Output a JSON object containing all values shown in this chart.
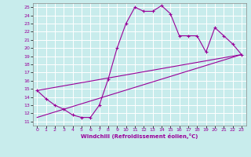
{
  "xlabel": "Windchill (Refroidissement éolien,°C)",
  "xlim": [
    -0.5,
    23.5
  ],
  "ylim": [
    10.5,
    25.5
  ],
  "yticks": [
    11,
    12,
    13,
    14,
    15,
    16,
    17,
    18,
    19,
    20,
    21,
    22,
    23,
    24,
    25
  ],
  "xticks": [
    0,
    1,
    2,
    3,
    4,
    5,
    6,
    7,
    8,
    9,
    10,
    11,
    12,
    13,
    14,
    15,
    16,
    17,
    18,
    19,
    20,
    21,
    22,
    23
  ],
  "line_color": "#990099",
  "bg_color": "#c8ecec",
  "grid_color": "#ffffff",
  "curve_x": [
    0,
    1,
    2,
    3,
    4,
    5,
    6,
    7,
    8,
    9,
    10,
    11,
    12,
    13,
    14,
    15,
    16,
    17,
    18,
    19,
    20,
    21,
    22,
    23
  ],
  "curve_y": [
    14.8,
    13.8,
    13.0,
    12.5,
    11.8,
    11.5,
    11.5,
    13.0,
    16.2,
    20.0,
    23.0,
    25.0,
    24.5,
    24.5,
    25.2,
    24.2,
    21.5,
    21.5,
    21.5,
    19.5,
    22.5,
    21.5,
    20.5,
    19.2
  ],
  "line1_x": [
    0,
    23
  ],
  "line1_y": [
    14.8,
    19.2
  ],
  "line2_x": [
    0,
    23
  ],
  "line2_y": [
    11.5,
    19.2
  ]
}
